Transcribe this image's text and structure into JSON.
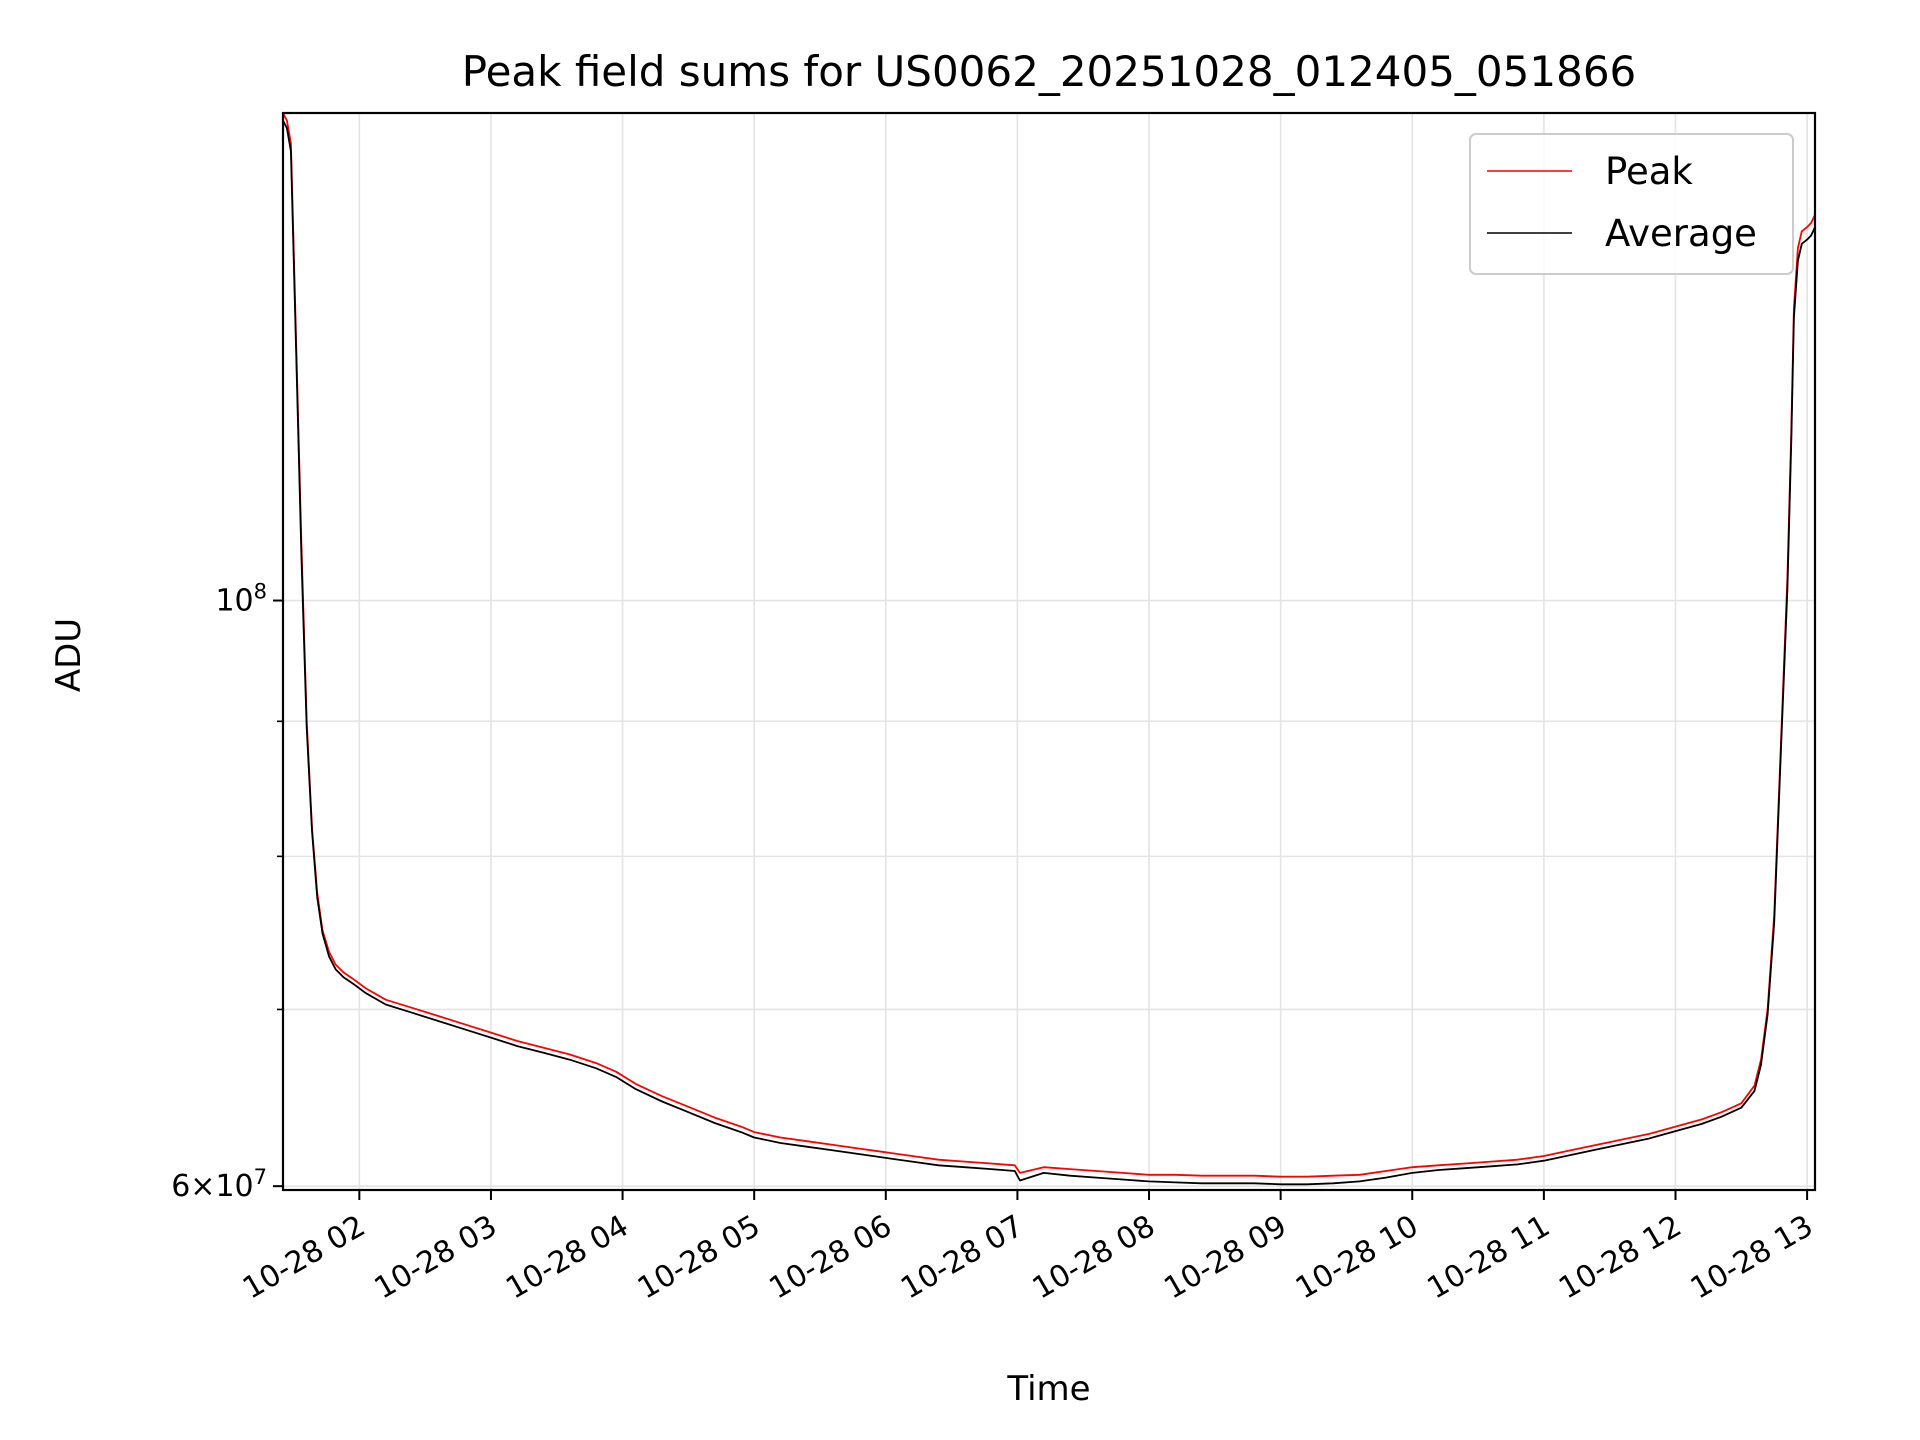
{
  "chart_data": {
    "type": "line",
    "title": "Peak field sums for US0062_20251028_012405_051866",
    "xlabel": "Time",
    "ylabel": "ADU",
    "yscale": "log",
    "grid": true,
    "legend_position": "top-right",
    "x_unit": "hours",
    "xlim": [
      1.42,
      13.06
    ],
    "ylim": [
      59800000,
      153000000
    ],
    "x_ticks": [
      2,
      3,
      4,
      5,
      6,
      7,
      8,
      9,
      10,
      11,
      12,
      13
    ],
    "x_tick_labels": [
      "10-28 02",
      "10-28 03",
      "10-28 04",
      "10-28 05",
      "10-28 06",
      "10-28 07",
      "10-28 08",
      "10-28 09",
      "10-28 10",
      "10-28 11",
      "10-28 12",
      "10-28 13"
    ],
    "y_major_ticks": [
      {
        "value": 60000000,
        "mantissa": "6",
        "exponent": "7"
      },
      {
        "value": 100000000,
        "mantissa": "",
        "exponent": "8"
      }
    ],
    "y_minor_ticks": [
      70000000,
      80000000,
      90000000,
      200000000
    ],
    "series": [
      {
        "name": "Peak",
        "color": "#ff0000",
        "x": [
          1.42,
          1.45,
          1.48,
          1.52,
          1.56,
          1.6,
          1.64,
          1.68,
          1.72,
          1.77,
          1.82,
          1.88,
          1.95,
          2.05,
          2.2,
          2.4,
          2.6,
          2.8,
          3.0,
          3.2,
          3.4,
          3.6,
          3.8,
          3.95,
          4.1,
          4.3,
          4.5,
          4.7,
          4.9,
          5.0,
          5.2,
          5.4,
          5.6,
          5.8,
          6.0,
          6.2,
          6.4,
          6.6,
          6.8,
          6.98,
          7.02,
          7.2,
          7.4,
          7.6,
          7.8,
          8.0,
          8.2,
          8.4,
          8.6,
          8.8,
          9.0,
          9.2,
          9.4,
          9.6,
          9.8,
          10.0,
          10.2,
          10.4,
          10.6,
          10.8,
          11.0,
          11.2,
          11.4,
          11.6,
          11.8,
          12.0,
          12.2,
          12.35,
          12.5,
          12.6,
          12.65,
          12.7,
          12.75,
          12.8,
          12.85,
          12.88,
          12.9,
          12.93,
          12.96,
          13.0,
          13.03,
          13.06
        ],
        "values": [
          153000000,
          152000000,
          149000000,
          125000000,
          105000000,
          90000000,
          82000000,
          77500000,
          75000000,
          73600000,
          72800000,
          72300000,
          71900000,
          71300000,
          70600000,
          70100000,
          69600000,
          69100000,
          68600000,
          68100000,
          67700000,
          67300000,
          66800000,
          66300000,
          65600000,
          64900000,
          64300000,
          63700000,
          63200000,
          62900000,
          62600000,
          62400000,
          62200000,
          62000000,
          61800000,
          61600000,
          61400000,
          61300000,
          61200000,
          61100000,
          60700000,
          61000000,
          60900000,
          60800000,
          60700000,
          60600000,
          60600000,
          60550000,
          60550000,
          60550000,
          60500000,
          60500000,
          60550000,
          60600000,
          60800000,
          61000000,
          61100000,
          61200000,
          61300000,
          61400000,
          61600000,
          61900000,
          62200000,
          62500000,
          62800000,
          63200000,
          63600000,
          64000000,
          64500000,
          65500000,
          67000000,
          70000000,
          76000000,
          88000000,
          102000000,
          116000000,
          129000000,
          136000000,
          138000000,
          138500000,
          139000000,
          140000000
        ]
      },
      {
        "name": "Average",
        "color": "#000000",
        "x": [
          1.42,
          1.45,
          1.48,
          1.52,
          1.56,
          1.6,
          1.64,
          1.68,
          1.72,
          1.77,
          1.82,
          1.88,
          1.95,
          2.05,
          2.2,
          2.4,
          2.6,
          2.8,
          3.0,
          3.2,
          3.4,
          3.6,
          3.8,
          3.95,
          4.1,
          4.3,
          4.5,
          4.7,
          4.9,
          5.0,
          5.2,
          5.4,
          5.6,
          5.8,
          6.0,
          6.2,
          6.4,
          6.6,
          6.8,
          6.98,
          7.02,
          7.2,
          7.4,
          7.6,
          7.8,
          8.0,
          8.2,
          8.4,
          8.6,
          8.8,
          9.0,
          9.2,
          9.4,
          9.6,
          9.8,
          10.0,
          10.2,
          10.4,
          10.6,
          10.8,
          11.0,
          11.2,
          11.4,
          11.6,
          11.8,
          12.0,
          12.2,
          12.35,
          12.5,
          12.6,
          12.65,
          12.7,
          12.75,
          12.8,
          12.85,
          12.88,
          12.9,
          12.93,
          12.96,
          13.0,
          13.03,
          13.06
        ],
        "values": [
          152000000,
          151000000,
          148000000,
          124000000,
          104000000,
          89500000,
          81800000,
          77200000,
          74800000,
          73300000,
          72500000,
          72000000,
          71600000,
          71000000,
          70300000,
          69800000,
          69300000,
          68800000,
          68300000,
          67800000,
          67400000,
          67000000,
          66500000,
          66000000,
          65300000,
          64600000,
          64000000,
          63400000,
          62900000,
          62600000,
          62300000,
          62100000,
          61900000,
          61700000,
          61500000,
          61300000,
          61100000,
          61000000,
          60900000,
          60800000,
          60300000,
          60700000,
          60550000,
          60450000,
          60350000,
          60250000,
          60200000,
          60150000,
          60150000,
          60150000,
          60100000,
          60100000,
          60150000,
          60250000,
          60450000,
          60700000,
          60850000,
          60950000,
          61050000,
          61150000,
          61350000,
          61650000,
          61950000,
          62250000,
          62550000,
          62950000,
          63350000,
          63750000,
          64250000,
          65200000,
          66700000,
          69700000,
          75500000,
          87500000,
          101000000,
          115000000,
          128000000,
          134500000,
          136500000,
          137000000,
          137500000,
          138500000
        ]
      }
    ]
  }
}
